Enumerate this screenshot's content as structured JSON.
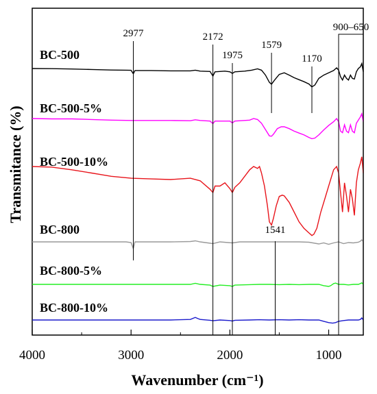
{
  "chart_data": {
    "type": "line",
    "xlabel": "Wavenumber (cm⁻¹)",
    "ylabel": "Transmitance (%)",
    "xlim": [
      4000,
      650
    ],
    "x_reversed": true,
    "x_ticks": [
      4000,
      3000,
      2000,
      1000
    ],
    "x_tick_labels": [
      "4000",
      "3000",
      "2000",
      "1000"
    ],
    "y_ticks_shown": false,
    "legend": "labels above each curve",
    "annotations": [
      {
        "label": "2977",
        "x": 2977
      },
      {
        "label": "2172",
        "x": 2172
      },
      {
        "label": "1975",
        "x": 1975
      },
      {
        "label": "1579",
        "x": 1579
      },
      {
        "label": "1170",
        "x": 1170
      },
      {
        "label": "1541",
        "x": 1541
      },
      {
        "label": "900–650",
        "range": [
          900,
          650
        ]
      }
    ],
    "series": [
      {
        "name": "BC-500",
        "color": "#000000",
        "points": [
          [
            4000,
            0.0
          ],
          [
            3800,
            0.005
          ],
          [
            3600,
            0.015
          ],
          [
            3400,
            0.03
          ],
          [
            3200,
            0.045
          ],
          [
            3050,
            0.05
          ],
          [
            3000,
            0.055
          ],
          [
            2977,
            0.16
          ],
          [
            2960,
            0.06
          ],
          [
            2800,
            0.06
          ],
          [
            2600,
            0.07
          ],
          [
            2400,
            0.07
          ],
          [
            2350,
            0.05
          ],
          [
            2300,
            0.08
          ],
          [
            2200,
            0.09
          ],
          [
            2172,
            0.23
          ],
          [
            2150,
            0.1
          ],
          [
            2050,
            0.08
          ],
          [
            2000,
            0.1
          ],
          [
            1975,
            0.15
          ],
          [
            1950,
            0.1
          ],
          [
            1850,
            0.08
          ],
          [
            1780,
            0.05
          ],
          [
            1720,
            0.01
          ],
          [
            1680,
            0.05
          ],
          [
            1640,
            0.2
          ],
          [
            1600,
            0.42
          ],
          [
            1579,
            0.48
          ],
          [
            1550,
            0.36
          ],
          [
            1500,
            0.18
          ],
          [
            1450,
            0.13
          ],
          [
            1400,
            0.2
          ],
          [
            1350,
            0.28
          ],
          [
            1300,
            0.34
          ],
          [
            1250,
            0.4
          ],
          [
            1200,
            0.47
          ],
          [
            1170,
            0.56
          ],
          [
            1140,
            0.5
          ],
          [
            1100,
            0.3
          ],
          [
            1050,
            0.2
          ],
          [
            1000,
            0.13
          ],
          [
            950,
            0.06
          ],
          [
            920,
            -0.02
          ],
          [
            900,
            0.05
          ],
          [
            880,
            0.25
          ],
          [
            860,
            0.35
          ],
          [
            840,
            0.2
          ],
          [
            820,
            0.3
          ],
          [
            800,
            0.35
          ],
          [
            780,
            0.2
          ],
          [
            760,
            0.3
          ],
          [
            740,
            0.32
          ],
          [
            720,
            0.1
          ],
          [
            700,
            0.0
          ],
          [
            680,
            -0.05
          ],
          [
            665,
            -0.15
          ],
          [
            650,
            0.1
          ]
        ]
      },
      {
        "name": "BC-500-5%",
        "color": "#ff00ff",
        "points": [
          [
            4000,
            0.0
          ],
          [
            3800,
            0.01
          ],
          [
            3600,
            0.01
          ],
          [
            3400,
            0.03
          ],
          [
            3200,
            0.05
          ],
          [
            3000,
            0.06
          ],
          [
            2800,
            0.06
          ],
          [
            2600,
            0.06
          ],
          [
            2400,
            0.07
          ],
          [
            2350,
            0.04
          ],
          [
            2300,
            0.06
          ],
          [
            2200,
            0.08
          ],
          [
            2172,
            0.16
          ],
          [
            2150,
            0.08
          ],
          [
            2000,
            0.08
          ],
          [
            1975,
            0.14
          ],
          [
            1950,
            0.08
          ],
          [
            1800,
            0.05
          ],
          [
            1760,
            0.0
          ],
          [
            1720,
            0.03
          ],
          [
            1680,
            0.15
          ],
          [
            1640,
            0.35
          ],
          [
            1600,
            0.55
          ],
          [
            1579,
            0.56
          ],
          [
            1560,
            0.5
          ],
          [
            1520,
            0.32
          ],
          [
            1480,
            0.26
          ],
          [
            1450,
            0.26
          ],
          [
            1400,
            0.32
          ],
          [
            1350,
            0.4
          ],
          [
            1300,
            0.46
          ],
          [
            1250,
            0.52
          ],
          [
            1200,
            0.6
          ],
          [
            1170,
            0.64
          ],
          [
            1140,
            0.62
          ],
          [
            1100,
            0.52
          ],
          [
            1050,
            0.36
          ],
          [
            1000,
            0.22
          ],
          [
            950,
            0.1
          ],
          [
            920,
            0.0
          ],
          [
            900,
            0.1
          ],
          [
            880,
            0.4
          ],
          [
            860,
            0.45
          ],
          [
            840,
            0.2
          ],
          [
            820,
            0.4
          ],
          [
            800,
            0.45
          ],
          [
            780,
            0.2
          ],
          [
            760,
            0.4
          ],
          [
            740,
            0.45
          ],
          [
            720,
            0.15
          ],
          [
            700,
            0.05
          ],
          [
            680,
            -0.05
          ],
          [
            665,
            -0.15
          ],
          [
            650,
            0.1
          ]
        ]
      },
      {
        "name": "BC-500-10%",
        "color": "#e8131a",
        "points": [
          [
            4000,
            0.0
          ],
          [
            3800,
            0.01
          ],
          [
            3600,
            0.05
          ],
          [
            3400,
            0.1
          ],
          [
            3200,
            0.15
          ],
          [
            3000,
            0.18
          ],
          [
            2800,
            0.19
          ],
          [
            2600,
            0.2
          ],
          [
            2400,
            0.18
          ],
          [
            2300,
            0.22
          ],
          [
            2200,
            0.35
          ],
          [
            2172,
            0.4
          ],
          [
            2150,
            0.3
          ],
          [
            2100,
            0.3
          ],
          [
            2050,
            0.25
          ],
          [
            2000,
            0.34
          ],
          [
            1975,
            0.4
          ],
          [
            1950,
            0.32
          ],
          [
            1900,
            0.25
          ],
          [
            1850,
            0.15
          ],
          [
            1800,
            0.05
          ],
          [
            1760,
            0.0
          ],
          [
            1720,
            0.03
          ],
          [
            1700,
            0.0
          ],
          [
            1680,
            0.1
          ],
          [
            1650,
            0.3
          ],
          [
            1620,
            0.6
          ],
          [
            1600,
            0.85
          ],
          [
            1579,
            0.9
          ],
          [
            1560,
            0.8
          ],
          [
            1530,
            0.6
          ],
          [
            1500,
            0.46
          ],
          [
            1470,
            0.44
          ],
          [
            1450,
            0.45
          ],
          [
            1400,
            0.55
          ],
          [
            1350,
            0.7
          ],
          [
            1300,
            0.85
          ],
          [
            1250,
            0.95
          ],
          [
            1200,
            1.02
          ],
          [
            1170,
            1.06
          ],
          [
            1150,
            1.04
          ],
          [
            1120,
            0.95
          ],
          [
            1080,
            0.7
          ],
          [
            1040,
            0.5
          ],
          [
            1000,
            0.3
          ],
          [
            950,
            0.05
          ],
          [
            920,
            0.0
          ],
          [
            900,
            0.1
          ],
          [
            880,
            0.4
          ],
          [
            860,
            0.7
          ],
          [
            840,
            0.25
          ],
          [
            820,
            0.45
          ],
          [
            800,
            0.7
          ],
          [
            780,
            0.35
          ],
          [
            760,
            0.5
          ],
          [
            740,
            0.75
          ],
          [
            720,
            0.25
          ],
          [
            700,
            0.05
          ],
          [
            680,
            -0.05
          ],
          [
            665,
            -0.15
          ],
          [
            650,
            0.1
          ]
        ]
      },
      {
        "name": "BC-800",
        "color": "#999999",
        "points": [
          [
            4000,
            0.0
          ],
          [
            3800,
            0.0
          ],
          [
            3600,
            0.0
          ],
          [
            3400,
            0.0
          ],
          [
            3200,
            0.0
          ],
          [
            3050,
            0.0
          ],
          [
            3000,
            0.02
          ],
          [
            2977,
            0.2
          ],
          [
            2960,
            0.0
          ],
          [
            2800,
            0.0
          ],
          [
            2600,
            0.0
          ],
          [
            2400,
            -0.01
          ],
          [
            2350,
            -0.03
          ],
          [
            2300,
            0.0
          ],
          [
            2172,
            0.05
          ],
          [
            2100,
            0.0
          ],
          [
            1975,
            0.03
          ],
          [
            1900,
            0.0
          ],
          [
            1700,
            0.0
          ],
          [
            1600,
            0.0
          ],
          [
            1500,
            0.0
          ],
          [
            1400,
            0.0
          ],
          [
            1300,
            0.0
          ],
          [
            1200,
            0.01
          ],
          [
            1100,
            0.06
          ],
          [
            1050,
            0.03
          ],
          [
            1000,
            0.07
          ],
          [
            950,
            0.03
          ],
          [
            900,
            0.0
          ],
          [
            850,
            0.05
          ],
          [
            800,
            0.02
          ],
          [
            750,
            0.03
          ],
          [
            700,
            0.01
          ],
          [
            680,
            -0.02
          ],
          [
            665,
            -0.06
          ],
          [
            650,
            0.0
          ]
        ]
      },
      {
        "name": "BC-800-5%",
        "color": "#22ee22",
        "points": [
          [
            4000,
            0.0
          ],
          [
            3800,
            0.0
          ],
          [
            3600,
            0.0
          ],
          [
            3400,
            0.0
          ],
          [
            3200,
            0.0
          ],
          [
            3000,
            0.0
          ],
          [
            2800,
            0.0
          ],
          [
            2600,
            0.0
          ],
          [
            2400,
            0.0
          ],
          [
            2350,
            -0.04
          ],
          [
            2300,
            0.0
          ],
          [
            2200,
            0.03
          ],
          [
            2172,
            0.08
          ],
          [
            2100,
            0.03
          ],
          [
            2000,
            0.05
          ],
          [
            1975,
            0.08
          ],
          [
            1950,
            0.03
          ],
          [
            1800,
            0.01
          ],
          [
            1700,
            0.0
          ],
          [
            1600,
            0.0
          ],
          [
            1500,
            0.01
          ],
          [
            1400,
            0.0
          ],
          [
            1300,
            0.01
          ],
          [
            1200,
            0.0
          ],
          [
            1100,
            0.0
          ],
          [
            1050,
            0.05
          ],
          [
            1000,
            0.08
          ],
          [
            980,
            0.05
          ],
          [
            950,
            -0.03
          ],
          [
            930,
            -0.05
          ],
          [
            900,
            0.0
          ],
          [
            850,
            0.0
          ],
          [
            800,
            0.02
          ],
          [
            750,
            0.0
          ],
          [
            700,
            0.0
          ],
          [
            680,
            -0.03
          ],
          [
            665,
            -0.06
          ],
          [
            650,
            0.0
          ]
        ]
      },
      {
        "name": "BC-800-10%",
        "color": "#1a1acc",
        "points": [
          [
            4000,
            0.0
          ],
          [
            3800,
            0.0
          ],
          [
            3600,
            0.0
          ],
          [
            3400,
            0.0
          ],
          [
            3200,
            0.0
          ],
          [
            3000,
            0.0
          ],
          [
            2800,
            0.0
          ],
          [
            2600,
            0.0
          ],
          [
            2400,
            -0.02
          ],
          [
            2350,
            -0.1
          ],
          [
            2320,
            -0.05
          ],
          [
            2300,
            -0.02
          ],
          [
            2200,
            0.01
          ],
          [
            2172,
            0.03
          ],
          [
            2100,
            0.0
          ],
          [
            2000,
            0.02
          ],
          [
            1975,
            0.04
          ],
          [
            1950,
            0.01
          ],
          [
            1800,
            0.0
          ],
          [
            1700,
            -0.01
          ],
          [
            1600,
            0.0
          ],
          [
            1500,
            -0.01
          ],
          [
            1400,
            0.0
          ],
          [
            1300,
            -0.01
          ],
          [
            1200,
            0.0
          ],
          [
            1100,
            0.0
          ],
          [
            1050,
            0.05
          ],
          [
            1000,
            0.1
          ],
          [
            960,
            0.12
          ],
          [
            930,
            0.1
          ],
          [
            900,
            0.05
          ],
          [
            850,
            0.02
          ],
          [
            800,
            0.0
          ],
          [
            750,
            0.0
          ],
          [
            700,
            0.0
          ],
          [
            680,
            -0.02
          ],
          [
            665,
            -0.08
          ],
          [
            650,
            0.0
          ]
        ]
      }
    ]
  }
}
